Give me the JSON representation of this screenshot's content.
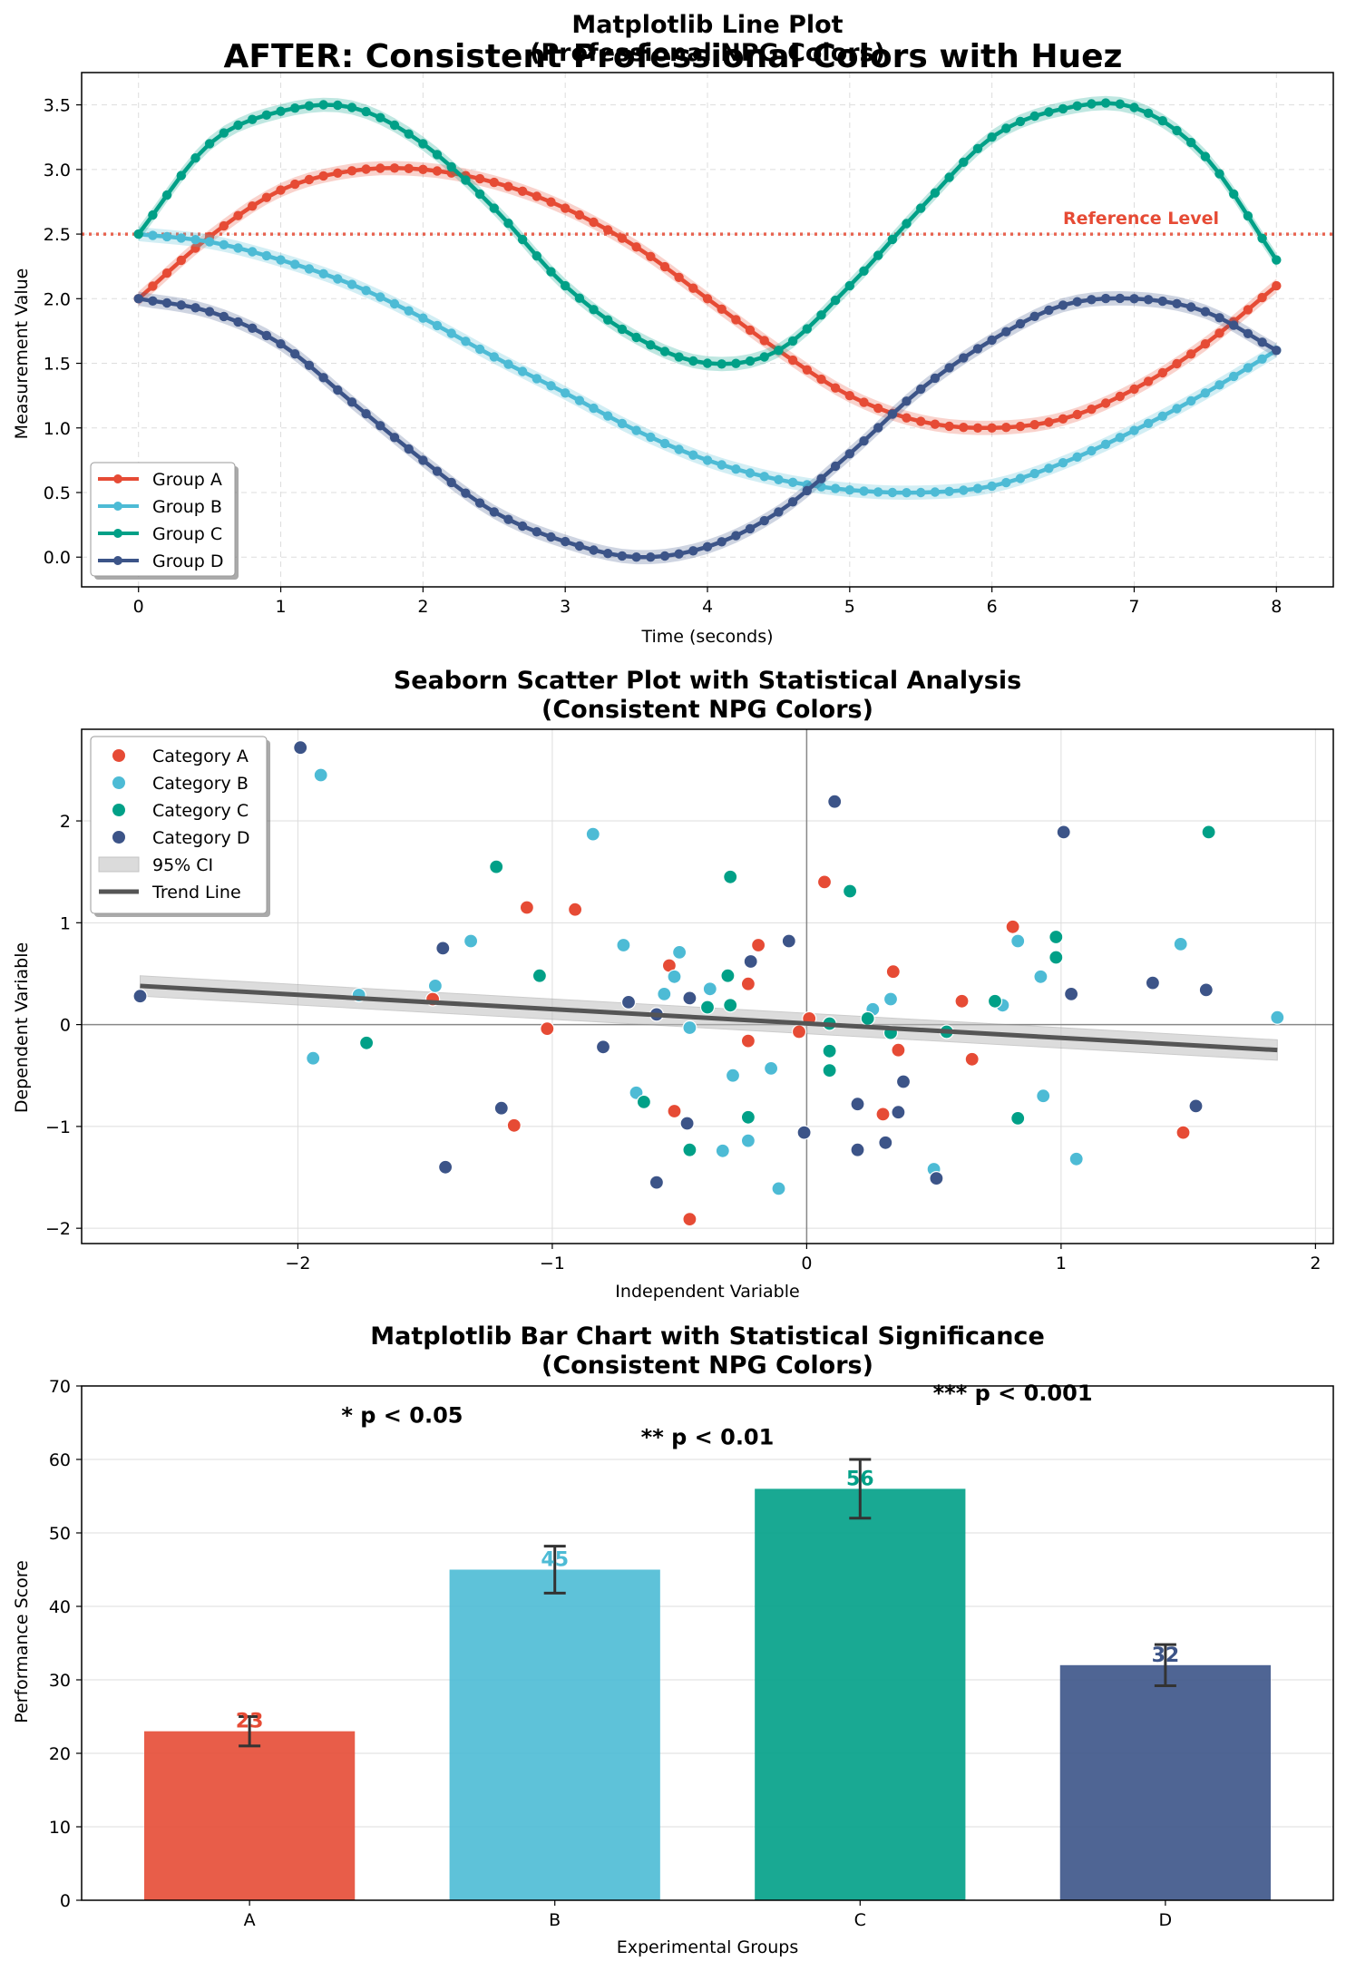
{
  "figure": {
    "suptitle": "AFTER: Consistent Professional Colors with Huez"
  },
  "colors": {
    "A": "#e64b35",
    "B": "#4dbbd5",
    "C": "#00a087",
    "D": "#3c5488",
    "trend": "#555555"
  },
  "chart_data": [
    {
      "type": "line",
      "title": "Matplotlib Line Plot",
      "subtitle": "(Professional NPG Colors)",
      "xlabel": "Time (seconds)",
      "ylabel": "Measurement Value",
      "xlim": [
        -0.4,
        8.4
      ],
      "ylim": [
        -0.23,
        3.75
      ],
      "xticks": [
        0,
        1,
        2,
        3,
        4,
        5,
        6,
        7,
        8
      ],
      "yticks": [
        0.0,
        0.5,
        1.0,
        1.5,
        2.0,
        2.5,
        3.0,
        3.5
      ],
      "grid": true,
      "legend_position": "lower left",
      "reference_line": {
        "y": 2.5,
        "label": "Reference Level",
        "style": "dotted"
      },
      "series": [
        {
          "name": "Group A",
          "color_key": "A",
          "x": [
            0,
            0.5,
            1,
            1.5,
            2,
            2.5,
            3,
            3.5,
            4,
            4.5,
            5,
            5.5,
            6,
            6.5,
            7,
            7.5,
            8
          ],
          "y": [
            2.0,
            2.48,
            2.84,
            2.99,
            3.0,
            2.9,
            2.7,
            2.4,
            2.0,
            1.6,
            1.25,
            1.05,
            1.0,
            1.07,
            1.3,
            1.65,
            2.1
          ]
        },
        {
          "name": "Group B",
          "color_key": "B",
          "x": [
            0,
            0.5,
            1,
            1.5,
            2,
            2.5,
            3,
            3.5,
            4,
            4.5,
            5,
            5.5,
            6,
            6.5,
            7,
            7.5,
            8
          ],
          "y": [
            2.5,
            2.44,
            2.3,
            2.11,
            1.85,
            1.55,
            1.27,
            0.98,
            0.75,
            0.6,
            0.52,
            0.5,
            0.55,
            0.73,
            0.98,
            1.27,
            1.6
          ]
        },
        {
          "name": "Group C",
          "color_key": "C",
          "x": [
            0,
            0.5,
            1,
            1.5,
            2,
            2.5,
            3,
            3.5,
            4,
            4.5,
            5,
            5.5,
            6,
            6.5,
            7,
            7.5,
            8
          ],
          "y": [
            2.5,
            3.2,
            3.45,
            3.48,
            3.2,
            2.7,
            2.1,
            1.7,
            1.5,
            1.6,
            2.1,
            2.7,
            3.25,
            3.47,
            3.48,
            3.1,
            2.3
          ]
        },
        {
          "name": "Group D",
          "color_key": "D",
          "x": [
            0,
            0.5,
            1,
            1.5,
            2,
            2.5,
            3,
            3.5,
            4,
            4.5,
            5,
            5.5,
            6,
            6.5,
            7,
            7.5,
            8
          ],
          "y": [
            2.0,
            1.9,
            1.65,
            1.2,
            0.75,
            0.35,
            0.12,
            0.0,
            0.08,
            0.35,
            0.8,
            1.3,
            1.68,
            1.95,
            2.0,
            1.9,
            1.6
          ]
        }
      ]
    },
    {
      "type": "scatter",
      "title": "Seaborn Scatter Plot with Statistical Analysis",
      "subtitle": "(Consistent NPG Colors)",
      "xlabel": "Independent Variable",
      "ylabel": "Dependent Variable",
      "xlim": [
        -2.85,
        2.07
      ],
      "ylim": [
        -2.15,
        2.9
      ],
      "xticks": [
        -2,
        -1,
        0,
        1,
        2
      ],
      "yticks": [
        -2,
        -1,
        0,
        1,
        2
      ],
      "tick_labels_x": [
        "−2",
        "−1",
        "0",
        "1",
        "2"
      ],
      "tick_labels_y": [
        "−2",
        "−1",
        "0",
        "1",
        "2"
      ],
      "grid": true,
      "legend_position": "upper left",
      "trend_line": {
        "name": "Trend Line",
        "x": [
          -2.62,
          1.85
        ],
        "y": [
          0.38,
          -0.25
        ]
      },
      "ci_label": "95% CI",
      "series": [
        {
          "name": "Category A",
          "color_key": "A",
          "points": [
            [
              -1.47,
              0.25
            ],
            [
              -1.1,
              1.15
            ],
            [
              -1.02,
              -0.04
            ],
            [
              -0.91,
              1.13
            ],
            [
              -1.15,
              -0.99
            ],
            [
              -0.54,
              0.58
            ],
            [
              -0.52,
              -0.85
            ],
            [
              -0.46,
              -1.91
            ],
            [
              -0.23,
              0.4
            ],
            [
              -0.23,
              -0.16
            ],
            [
              -0.19,
              0.78
            ],
            [
              -0.03,
              -0.07
            ],
            [
              0.01,
              0.06
            ],
            [
              0.07,
              1.4
            ],
            [
              0.3,
              -0.88
            ],
            [
              0.34,
              0.52
            ],
            [
              0.36,
              -0.25
            ],
            [
              0.61,
              0.23
            ],
            [
              0.65,
              -0.34
            ],
            [
              0.81,
              0.96
            ],
            [
              1.48,
              -1.06
            ]
          ]
        },
        {
          "name": "Category B",
          "color_key": "B",
          "points": [
            [
              -1.94,
              -0.33
            ],
            [
              -1.91,
              2.45
            ],
            [
              -1.76,
              0.29
            ],
            [
              -1.46,
              0.38
            ],
            [
              -1.32,
              0.82
            ],
            [
              -0.84,
              1.87
            ],
            [
              -0.72,
              0.78
            ],
            [
              -0.67,
              -0.67
            ],
            [
              -0.56,
              0.3
            ],
            [
              -0.52,
              0.47
            ],
            [
              -0.5,
              0.71
            ],
            [
              -0.46,
              -0.03
            ],
            [
              -0.38,
              0.35
            ],
            [
              -0.33,
              -1.24
            ],
            [
              -0.29,
              -0.5
            ],
            [
              -0.23,
              -1.14
            ],
            [
              -0.14,
              -0.43
            ],
            [
              -0.11,
              -1.61
            ],
            [
              0.26,
              0.15
            ],
            [
              0.33,
              0.25
            ],
            [
              0.5,
              -1.42
            ],
            [
              0.77,
              0.19
            ],
            [
              0.83,
              0.82
            ],
            [
              0.92,
              0.47
            ],
            [
              0.93,
              -0.7
            ],
            [
              1.06,
              -1.32
            ],
            [
              1.47,
              0.79
            ],
            [
              1.85,
              0.07
            ]
          ]
        },
        {
          "name": "Category C",
          "color_key": "C",
          "points": [
            [
              -1.73,
              -0.18
            ],
            [
              -1.22,
              1.55
            ],
            [
              -1.05,
              0.48
            ],
            [
              -0.64,
              -0.76
            ],
            [
              -0.46,
              -1.23
            ],
            [
              -0.39,
              0.17
            ],
            [
              -0.31,
              0.48
            ],
            [
              -0.3,
              1.45
            ],
            [
              -0.3,
              0.19
            ],
            [
              -0.23,
              -0.91
            ],
            [
              0.09,
              0.01
            ],
            [
              0.09,
              -0.26
            ],
            [
              0.09,
              -0.45
            ],
            [
              0.17,
              1.31
            ],
            [
              0.24,
              0.06
            ],
            [
              0.33,
              -0.08
            ],
            [
              0.55,
              -0.07
            ],
            [
              0.74,
              0.23
            ],
            [
              0.83,
              -0.92
            ],
            [
              0.98,
              0.86
            ],
            [
              0.98,
              0.66
            ],
            [
              1.58,
              1.89
            ]
          ]
        },
        {
          "name": "Category D",
          "color_key": "D",
          "points": [
            [
              -2.62,
              0.28
            ],
            [
              -1.99,
              2.72
            ],
            [
              -1.43,
              0.75
            ],
            [
              -1.42,
              -1.4
            ],
            [
              -1.2,
              -0.82
            ],
            [
              -0.8,
              -0.22
            ],
            [
              -0.7,
              0.22
            ],
            [
              -0.59,
              0.1
            ],
            [
              -0.59,
              -1.55
            ],
            [
              -0.47,
              -0.97
            ],
            [
              -0.46,
              0.26
            ],
            [
              -0.22,
              0.62
            ],
            [
              -0.07,
              0.82
            ],
            [
              -0.01,
              -1.06
            ],
            [
              0.11,
              2.19
            ],
            [
              0.2,
              -0.78
            ],
            [
              0.2,
              -1.23
            ],
            [
              0.31,
              -1.16
            ],
            [
              0.36,
              -0.86
            ],
            [
              0.38,
              -0.56
            ],
            [
              0.51,
              -1.51
            ],
            [
              1.01,
              1.89
            ],
            [
              1.04,
              0.3
            ],
            [
              1.36,
              0.41
            ],
            [
              1.53,
              -0.8
            ],
            [
              1.57,
              0.34
            ]
          ]
        }
      ]
    },
    {
      "type": "bar",
      "title": "Matplotlib Bar Chart with Statistical Significance",
      "subtitle": "(Consistent NPG Colors)",
      "xlabel": "Experimental Groups",
      "ylabel": "Performance Score",
      "categories": [
        "A",
        "B",
        "C",
        "D"
      ],
      "values": [
        23,
        45,
        56,
        32
      ],
      "value_labels": [
        "23",
        "45",
        "56",
        "32"
      ],
      "errors": [
        2.0,
        3.2,
        4.0,
        2.8
      ],
      "color_keys": [
        "A",
        "B",
        "C",
        "D"
      ],
      "ylim": [
        0,
        70
      ],
      "yticks": [
        0,
        10,
        20,
        30,
        40,
        50,
        60,
        70
      ],
      "grid": true,
      "annotations": [
        {
          "text": "* p < 0.05",
          "x": 0.5,
          "y": 66
        },
        {
          "text": "** p < 0.01",
          "x": 1.5,
          "y": 63
        },
        {
          "text": "*** p < 0.001",
          "x": 2.5,
          "y": 69
        }
      ]
    }
  ]
}
